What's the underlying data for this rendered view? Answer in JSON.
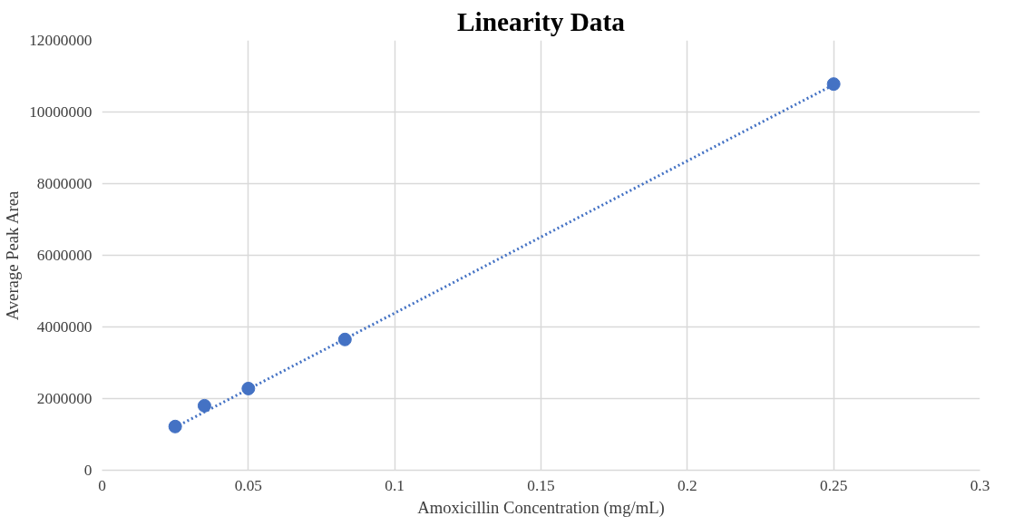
{
  "chart_data": {
    "type": "scatter",
    "title": "Linearity Data",
    "xlabel": "Amoxicillin Concentration (mg/mL)",
    "ylabel": "Average Peak Area",
    "series": [
      {
        "color": "#4472c4",
        "x": [
          0.025,
          0.035,
          0.05,
          0.083,
          0.25
        ],
        "values": [
          1220000,
          1800000,
          2280000,
          3650000,
          10780000
        ],
        "marker": "circle"
      },
      {
        "type": "line",
        "color": "#4472c4",
        "x": [
          0.025,
          0.25
        ],
        "values": [
          1200000,
          10760000
        ],
        "line_style": "dotted",
        "marker": "none"
      }
    ],
    "xlim": [
      0,
      0.3
    ],
    "xticks": [
      0,
      0.05,
      0.1,
      0.15,
      0.2,
      0.25,
      0.3
    ],
    "ylim": [
      0,
      12000000
    ],
    "yticks": [
      0,
      2000000,
      4000000,
      6000000,
      8000000,
      10000000,
      12000000
    ],
    "grid": true
  }
}
